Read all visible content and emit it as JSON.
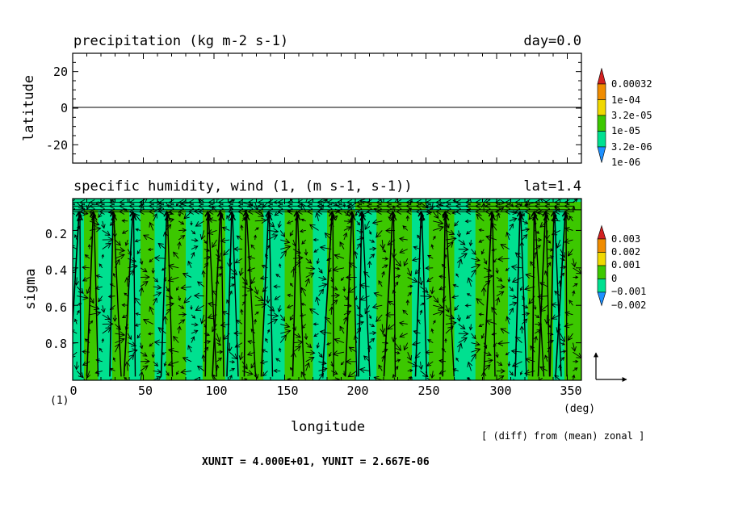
{
  "chart_data": [
    {
      "type": "map",
      "title": "precipitation (kg m-2 s-1)",
      "right_title": "day=0.0",
      "ylabel": "latitude",
      "yticks": [
        "20",
        "0",
        "-20"
      ],
      "ylim": [
        -30,
        30
      ],
      "xlim": [
        0,
        360
      ],
      "zero_line_lat": 0,
      "colorbar": {
        "labels": [
          "0.00032",
          "1e-04",
          "3.2e-05",
          "1e-05",
          "3.2e-06",
          "1e-06"
        ],
        "colors": [
          "#d22020",
          "#f08c00",
          "#f0d800",
          "#3cc800",
          "#00e090",
          "#1e90ff"
        ]
      }
    },
    {
      "type": "heatmap",
      "title": "specific humidity, wind (1, (m s-1, s-1))",
      "right_title": "lat=1.4",
      "ylabel": "sigma",
      "xlabel": "longitude",
      "xunit_label": "(deg)",
      "corner_label": "(1)",
      "xticks": [
        "0",
        "50",
        "100",
        "150",
        "200",
        "250",
        "300",
        "350"
      ],
      "xtick_values": [
        0,
        50,
        100,
        150,
        200,
        250,
        300,
        350
      ],
      "yticks": [
        "0.2",
        "0.4",
        "0.6",
        "0.8"
      ],
      "ytick_values": [
        0.2,
        0.4,
        0.6,
        0.8
      ],
      "xlim": [
        0,
        360
      ],
      "ylim": [
        1.0,
        0.03
      ],
      "colorbar": {
        "labels": [
          "0.003",
          "0.002",
          "0.001",
          "0",
          "−0.001",
          "−0.002"
        ],
        "colors": [
          "#d22020",
          "#f08c00",
          "#f0d800",
          "#3cc800",
          "#00e090",
          "#1e90ff"
        ]
      },
      "band_fields": [
        {
          "lon_start": 0,
          "lon_end": 8,
          "value": -0.0005
        },
        {
          "lon_start": 8,
          "lon_end": 18,
          "value": 0.0003
        },
        {
          "lon_start": 18,
          "lon_end": 28,
          "value": -0.0005
        },
        {
          "lon_start": 28,
          "lon_end": 40,
          "value": 0.0003
        },
        {
          "lon_start": 40,
          "lon_end": 48,
          "value": -0.0005
        },
        {
          "lon_start": 48,
          "lon_end": 58,
          "value": 0.0004
        },
        {
          "lon_start": 58,
          "lon_end": 66,
          "value": -0.0005
        },
        {
          "lon_start": 66,
          "lon_end": 80,
          "value": 0.0003
        },
        {
          "lon_start": 80,
          "lon_end": 92,
          "value": -0.0005
        },
        {
          "lon_start": 92,
          "lon_end": 108,
          "value": 0.0004
        },
        {
          "lon_start": 108,
          "lon_end": 118,
          "value": -0.0005
        },
        {
          "lon_start": 118,
          "lon_end": 135,
          "value": 0.0003
        },
        {
          "lon_start": 135,
          "lon_end": 150,
          "value": -0.0005
        },
        {
          "lon_start": 150,
          "lon_end": 170,
          "value": 0.0004
        },
        {
          "lon_start": 170,
          "lon_end": 180,
          "value": -0.0005
        },
        {
          "lon_start": 180,
          "lon_end": 200,
          "value": 0.0004
        },
        {
          "lon_start": 200,
          "lon_end": 215,
          "value": -0.0005
        },
        {
          "lon_start": 215,
          "lon_end": 240,
          "value": 0.0003
        },
        {
          "lon_start": 240,
          "lon_end": 252,
          "value": -0.0005
        },
        {
          "lon_start": 252,
          "lon_end": 270,
          "value": 0.0004
        },
        {
          "lon_start": 270,
          "lon_end": 285,
          "value": -0.0005
        },
        {
          "lon_start": 285,
          "lon_end": 308,
          "value": 0.0005
        },
        {
          "lon_start": 308,
          "lon_end": 322,
          "value": -0.0005
        },
        {
          "lon_start": 322,
          "lon_end": 340,
          "value": 0.0003
        },
        {
          "lon_start": 340,
          "lon_end": 348,
          "value": -0.0005
        },
        {
          "lon_start": 348,
          "lon_end": 360,
          "value": 0.0003
        }
      ],
      "vertical_levels": [
        0.05,
        0.1,
        0.15,
        0.2,
        0.25,
        0.3,
        0.35,
        0.4,
        0.45,
        0.5,
        0.55,
        0.6,
        0.65,
        0.7,
        0.75,
        0.8,
        0.85,
        0.9,
        0.95,
        1.0
      ],
      "long_arrow_lons": [
        4,
        14,
        28,
        42,
        66,
        95,
        104,
        112,
        122,
        138,
        158,
        183,
        197,
        204,
        226,
        246,
        263,
        296,
        316,
        326,
        334,
        340,
        348
      ],
      "reference_vector": {
        "u": 1,
        "w": 1
      }
    }
  ],
  "footer": {
    "note": "[ (diff) from (mean) zonal ]",
    "units": "XUNIT = 4.000E+01, YUNIT = 2.667E-06"
  }
}
